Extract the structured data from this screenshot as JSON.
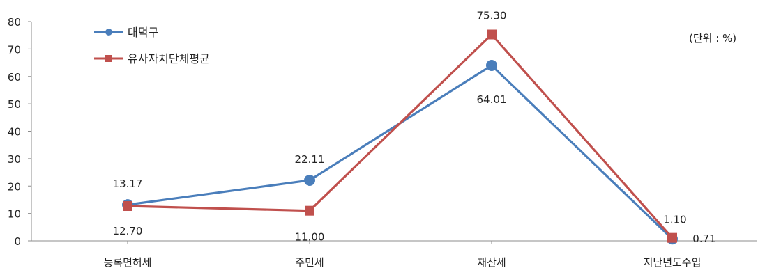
{
  "chart_data": {
    "type": "line",
    "unit_note": "(단위 : %)",
    "categories": [
      "등록면허세",
      "주민세",
      "재산세",
      "지난년도수입"
    ],
    "ylim": [
      0,
      80
    ],
    "yticks": [
      0,
      10,
      20,
      30,
      40,
      50,
      60,
      70,
      80
    ],
    "grid": false,
    "legend_position": "top-left",
    "series": [
      {
        "name": "대덕구",
        "values": [
          13.17,
          22.11,
          64.01,
          0.71
        ],
        "labels": [
          "13.17",
          "22.11",
          "64.01",
          "0.71"
        ],
        "color": "#4a7ebb",
        "marker": "circle"
      },
      {
        "name": "유사자치단체평균",
        "values": [
          12.7,
          11.0,
          75.3,
          1.1
        ],
        "labels": [
          "12.70",
          "11.00",
          "75.30",
          "1.10"
        ],
        "color": "#c0504d",
        "marker": "square"
      }
    ]
  }
}
